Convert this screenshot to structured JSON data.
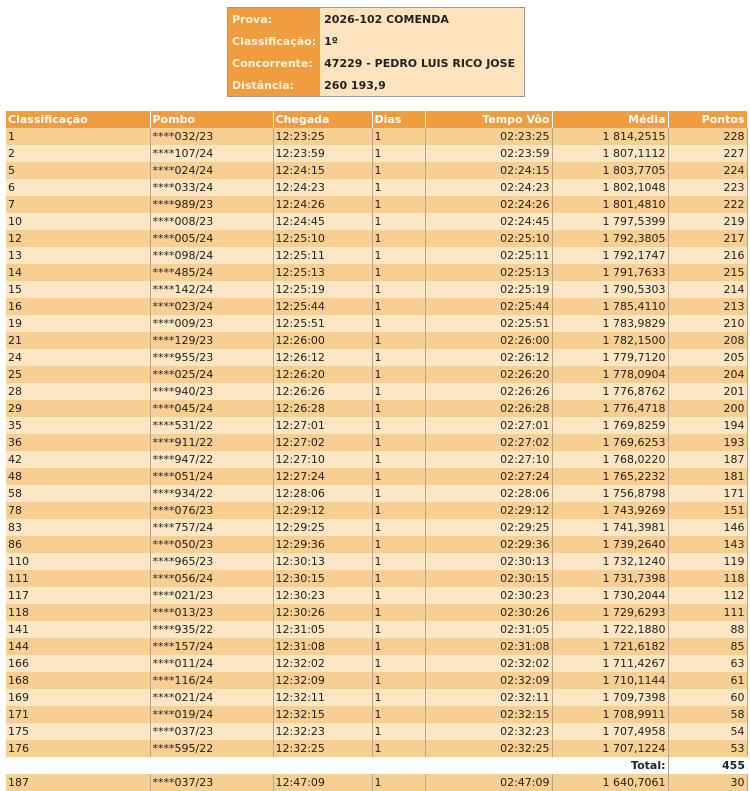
{
  "info": {
    "rows": [
      {
        "label": "Prova:",
        "value": "2026-102 COMENDA"
      },
      {
        "label": "Classificação:",
        "value": "1º"
      },
      {
        "label": "Concorrente:",
        "value": "47229 - PEDRO LUIS RICO JOSE"
      },
      {
        "label": "Distância:",
        "value": "260 193,9"
      }
    ]
  },
  "table": {
    "headers": [
      "Classificação",
      "Pombo",
      "Chegada",
      "Dias",
      "Tempo Vôo",
      "Média",
      "Pontos"
    ],
    "rows": [
      [
        "1",
        "****032/23",
        "12:23:25",
        "1",
        "02:23:25",
        "1 814,2515",
        "228"
      ],
      [
        "2",
        "****107/24",
        "12:23:59",
        "1",
        "02:23:59",
        "1 807,1112",
        "227"
      ],
      [
        "5",
        "****024/24",
        "12:24:15",
        "1",
        "02:24:15",
        "1 803,7705",
        "224"
      ],
      [
        "6",
        "****033/24",
        "12:24:23",
        "1",
        "02:24:23",
        "1 802,1048",
        "223"
      ],
      [
        "7",
        "****989/23",
        "12:24:26",
        "1",
        "02:24:26",
        "1 801,4810",
        "222"
      ],
      [
        "10",
        "****008/23",
        "12:24:45",
        "1",
        "02:24:45",
        "1 797,5399",
        "219"
      ],
      [
        "12",
        "****005/24",
        "12:25:10",
        "1",
        "02:25:10",
        "1 792,3805",
        "217"
      ],
      [
        "13",
        "****098/24",
        "12:25:11",
        "1",
        "02:25:11",
        "1 792,1747",
        "216"
      ],
      [
        "14",
        "****485/24",
        "12:25:13",
        "1",
        "02:25:13",
        "1 791,7633",
        "215"
      ],
      [
        "15",
        "****142/24",
        "12:25:19",
        "1",
        "02:25:19",
        "1 790,5303",
        "214"
      ],
      [
        "16",
        "****023/24",
        "12:25:44",
        "1",
        "02:25:44",
        "1 785,4110",
        "213"
      ],
      [
        "19",
        "****009/23",
        "12:25:51",
        "1",
        "02:25:51",
        "1 783,9829",
        "210"
      ],
      [
        "21",
        "****129/23",
        "12:26:00",
        "1",
        "02:26:00",
        "1 782,1500",
        "208"
      ],
      [
        "24",
        "****955/23",
        "12:26:12",
        "1",
        "02:26:12",
        "1 779,7120",
        "205"
      ],
      [
        "25",
        "****025/24",
        "12:26:20",
        "1",
        "02:26:20",
        "1 778,0904",
        "204"
      ],
      [
        "28",
        "****940/23",
        "12:26:26",
        "1",
        "02:26:26",
        "1 776,8762",
        "201"
      ],
      [
        "29",
        "****045/24",
        "12:26:28",
        "1",
        "02:26:28",
        "1 776,4718",
        "200"
      ],
      [
        "35",
        "****531/22",
        "12:27:01",
        "1",
        "02:27:01",
        "1 769,8259",
        "194"
      ],
      [
        "36",
        "****911/22",
        "12:27:02",
        "1",
        "02:27:02",
        "1 769,6253",
        "193"
      ],
      [
        "42",
        "****947/22",
        "12:27:10",
        "1",
        "02:27:10",
        "1 768,0220",
        "187"
      ],
      [
        "48",
        "****051/24",
        "12:27:24",
        "1",
        "02:27:24",
        "1 765,2232",
        "181"
      ],
      [
        "58",
        "****934/22",
        "12:28:06",
        "1",
        "02:28:06",
        "1 756,8798",
        "171"
      ],
      [
        "78",
        "****076/23",
        "12:29:12",
        "1",
        "02:29:12",
        "1 743,9269",
        "151"
      ],
      [
        "83",
        "****757/24",
        "12:29:25",
        "1",
        "02:29:25",
        "1 741,3981",
        "146"
      ],
      [
        "86",
        "****050/23",
        "12:29:36",
        "1",
        "02:29:36",
        "1 739,2640",
        "143"
      ],
      [
        "110",
        "****965/23",
        "12:30:13",
        "1",
        "02:30:13",
        "1 732,1240",
        "119"
      ],
      [
        "111",
        "****056/24",
        "12:30:15",
        "1",
        "02:30:15",
        "1 731,7398",
        "118"
      ],
      [
        "117",
        "****021/23",
        "12:30:23",
        "1",
        "02:30:23",
        "1 730,2044",
        "112"
      ],
      [
        "118",
        "****013/23",
        "12:30:26",
        "1",
        "02:30:26",
        "1 729,6293",
        "111"
      ],
      [
        "141",
        "****935/22",
        "12:31:05",
        "1",
        "02:31:05",
        "1 722,1880",
        "88"
      ],
      [
        "144",
        "****157/24",
        "12:31:08",
        "1",
        "02:31:08",
        "1 721,6182",
        "85"
      ],
      [
        "166",
        "****011/24",
        "12:32:02",
        "1",
        "02:32:02",
        "1 711,4267",
        "63"
      ],
      [
        "168",
        "****116/24",
        "12:32:09",
        "1",
        "02:32:09",
        "1 710,1144",
        "61"
      ],
      [
        "169",
        "****021/24",
        "12:32:11",
        "1",
        "02:32:11",
        "1 709,7398",
        "60"
      ],
      [
        "171",
        "****019/24",
        "12:32:15",
        "1",
        "02:32:15",
        "1 708,9911",
        "58"
      ],
      [
        "175",
        "****037/23",
        "12:32:23",
        "1",
        "02:32:23",
        "1 707,4958",
        "54"
      ],
      [
        "176",
        "****595/22",
        "12:32:25",
        "1",
        "02:32:25",
        "1 707,1224",
        "53"
      ]
    ],
    "total_label": "Total:",
    "total_value": "455",
    "next_row": [
      "187",
      "****037/23",
      "12:47:09",
      "1",
      "02:47:09",
      "1 640,7061",
      "30"
    ]
  }
}
